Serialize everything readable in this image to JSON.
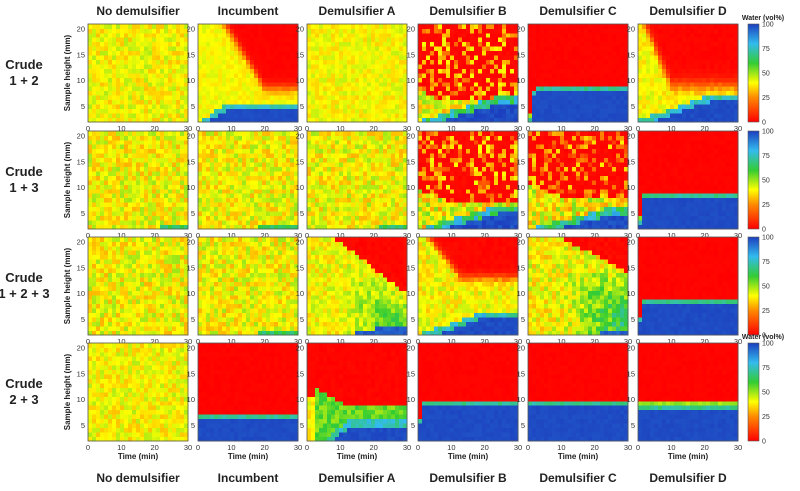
{
  "chart_data": {
    "type": "heatmap",
    "columns": [
      "No demulsifier",
      "Incumbent",
      "Demulsifier A",
      "Demulsifier B",
      "Demulsifier C",
      "Demulsifier D"
    ],
    "rows": [
      "Crude\n1 + 2",
      "Crude\n1 + 3",
      "Crude\n1 + 2 + 3",
      "Crude\n2 + 3"
    ],
    "xlabel": "Time (min)",
    "ylabel": "Sample height (mm)",
    "x_ticks": [
      0,
      10,
      20,
      30
    ],
    "y_ticks": [
      5,
      10,
      15,
      20
    ],
    "xlim": [
      0,
      30
    ],
    "ylim": [
      2,
      21
    ],
    "colorbar": {
      "label": "Water (vol%)",
      "ticks": [
        0,
        25,
        50,
        75,
        100
      ],
      "range": [
        0,
        100
      ],
      "stops": [
        {
          "v": 0,
          "color": "#ff0000"
        },
        {
          "v": 25,
          "color": "#ff8a00"
        },
        {
          "v": 40,
          "color": "#ffff00"
        },
        {
          "v": 60,
          "color": "#33cc33"
        },
        {
          "v": 80,
          "color": "#33bbee"
        },
        {
          "v": 100,
          "color": "#1c3fbf"
        }
      ]
    },
    "panels": [
      [
        {
          "type": "none"
        },
        {
          "type": "drop",
          "base": 5,
          "slope": 0.18,
          "sep": 8.5,
          "sepStart": 8,
          "rise": 12,
          "sepSharp": 0.6,
          "noise": 4
        },
        {
          "type": "none",
          "noise": 6
        },
        {
          "type": "spotty",
          "base": 6,
          "slope": 0.08,
          "sep": 6,
          "rise": 6,
          "level": 30,
          "noise": 12
        },
        {
          "type": "sharp",
          "base": 8,
          "sep": 8,
          "riseSteep": 2,
          "noise": 4
        },
        {
          "type": "drop",
          "base": 6.5,
          "slope": 0.1,
          "sep": 9,
          "sepStart": 2,
          "rise": 8,
          "sepSharp": 0.8,
          "noise": 6
        }
      ],
      [
        {
          "type": "thinbase",
          "base": 2.5,
          "noise": 10
        },
        {
          "type": "thinbase",
          "base": 3,
          "noise": 10
        },
        {
          "type": "thinbase",
          "base": 2.5,
          "noise": 10
        },
        {
          "type": "spotty",
          "base": 5.5,
          "slope": 0.12,
          "sep": 7,
          "rise": 10,
          "level": 28,
          "noise": 14
        },
        {
          "type": "spotty",
          "base": 5,
          "slope": 0.1,
          "sep": 8,
          "rise": 12,
          "level": 25,
          "noise": 14
        },
        {
          "type": "sharp",
          "base": 8,
          "sep": 8.5,
          "riseSteep": 1.5,
          "noise": 4
        }
      ],
      [
        {
          "type": "none",
          "noise": 10
        },
        {
          "type": "thinbase",
          "base": 3,
          "noise": 10
        },
        {
          "type": "gradient",
          "base": 4,
          "sep": 10,
          "rise": 22,
          "noise": 8
        },
        {
          "type": "drop",
          "base": 5.5,
          "slope": 0.1,
          "sep": 13,
          "sepStart": 3,
          "rise": 10,
          "sepSharp": 0.5,
          "noise": 8
        },
        {
          "type": "gradient",
          "base": 3,
          "sep": 14,
          "rise": 20,
          "noise": 10
        },
        {
          "type": "sharp",
          "base": 8,
          "sep": 9,
          "riseSteep": 1,
          "noise": 4
        }
      ],
      [
        {
          "type": "none"
        },
        {
          "type": "sharp",
          "base": 6.5,
          "sep": 7.5,
          "riseSteep": 0.5,
          "noise": 4
        },
        {
          "type": "late",
          "base": 5,
          "sep": 8.5,
          "delay": 3,
          "noise": 6
        },
        {
          "type": "sharp",
          "base": 9,
          "sep": 9,
          "riseSteep": 1,
          "noise": 4
        },
        {
          "type": "sharp",
          "base": 9,
          "sep": 9,
          "riseSteep": 0.5,
          "noise": 4
        },
        {
          "type": "sharp",
          "base": 8.5,
          "sep": 8.5,
          "riseSteep": 0.5,
          "noise": 4
        }
      ]
    ]
  }
}
